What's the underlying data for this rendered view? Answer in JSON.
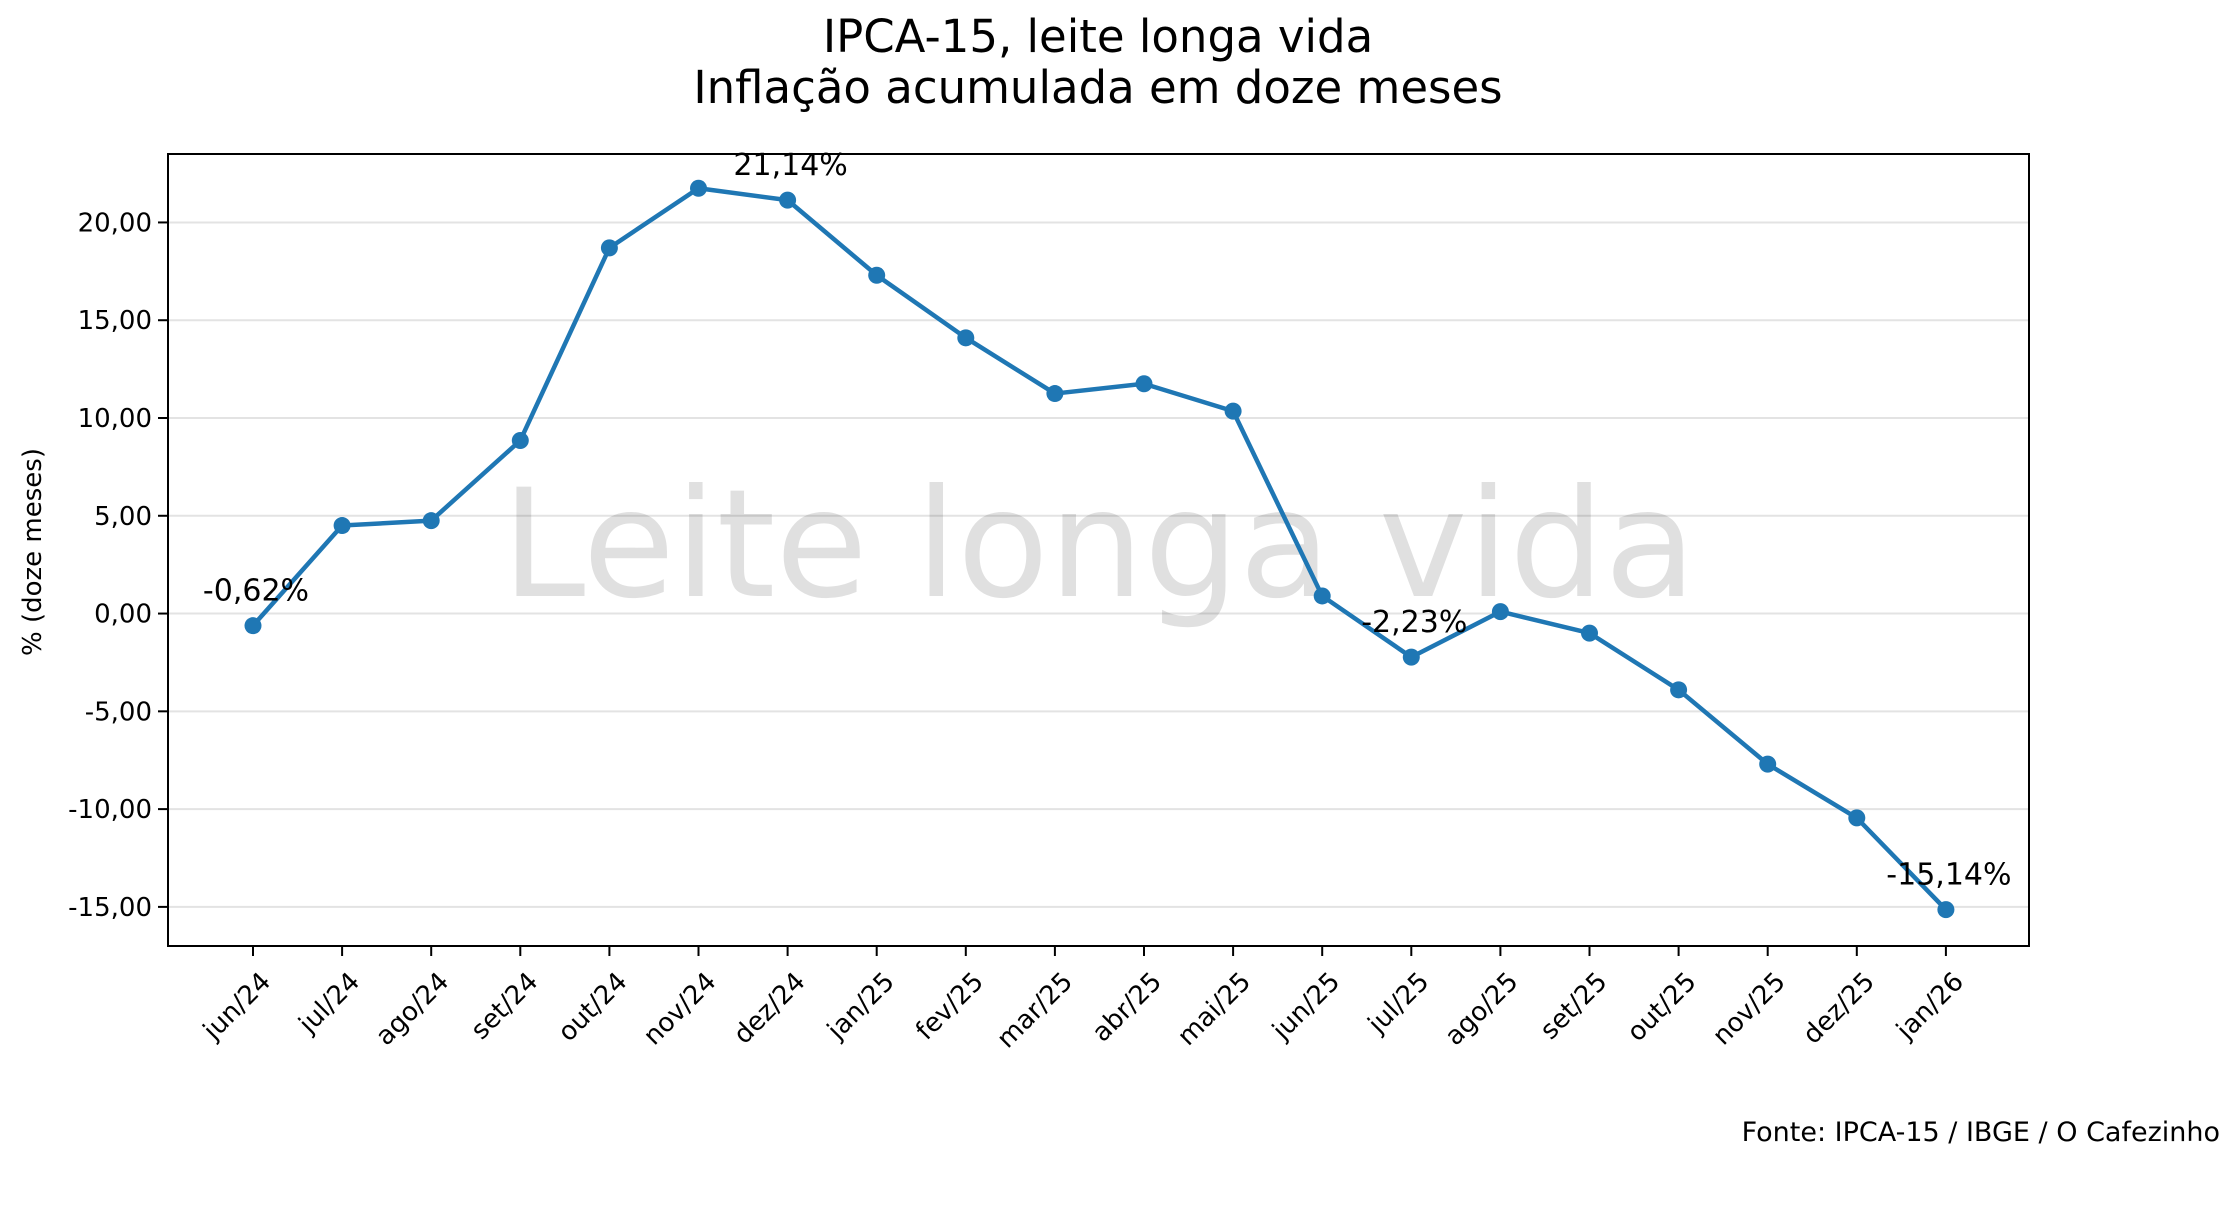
{
  "chart_data": {
    "type": "line",
    "title": "IPCA-15, leite longa vida",
    "subtitle": "Inflação acumulada em doze meses",
    "xlabel": "",
    "ylabel": "% (doze meses)",
    "ylim": [
      -17,
      23.5
    ],
    "yticks": [
      -15,
      -10,
      -5,
      0,
      5,
      10,
      15,
      20
    ],
    "ytick_labels": [
      "-15,00",
      "-10,00",
      "-5,00",
      "0,00",
      "5,00",
      "10,00",
      "15,00",
      "20,00"
    ],
    "grid": "horizontal",
    "categories": [
      "jun/24",
      "jul/24",
      "ago/24",
      "set/24",
      "out/24",
      "nov/24",
      "dez/24",
      "jan/25",
      "fev/25",
      "mar/25",
      "abr/25",
      "mai/25",
      "jun/25",
      "jul/25",
      "ago/25",
      "set/25",
      "out/25",
      "nov/25",
      "dez/25",
      "jan/26"
    ],
    "series": [
      {
        "values": [
          -0.62,
          4.5,
          4.75,
          8.85,
          18.7,
          21.75,
          21.14,
          17.3,
          14.1,
          11.25,
          11.75,
          10.35,
          0.9,
          -2.23,
          0.1,
          -1.0,
          -3.9,
          -7.7,
          -10.45,
          -15.14
        ],
        "color": "#1f77b4"
      }
    ],
    "annotations": [
      {
        "index": 0,
        "label": "-0,62%"
      },
      {
        "index": 6,
        "label": "21,14%"
      },
      {
        "index": 13,
        "label": "-2,23%"
      },
      {
        "index": 19,
        "label": "-15,14%"
      }
    ],
    "watermark": "Leite longa vida",
    "source": "Fonte: IPCA-15 / IBGE / O Cafezinho"
  }
}
